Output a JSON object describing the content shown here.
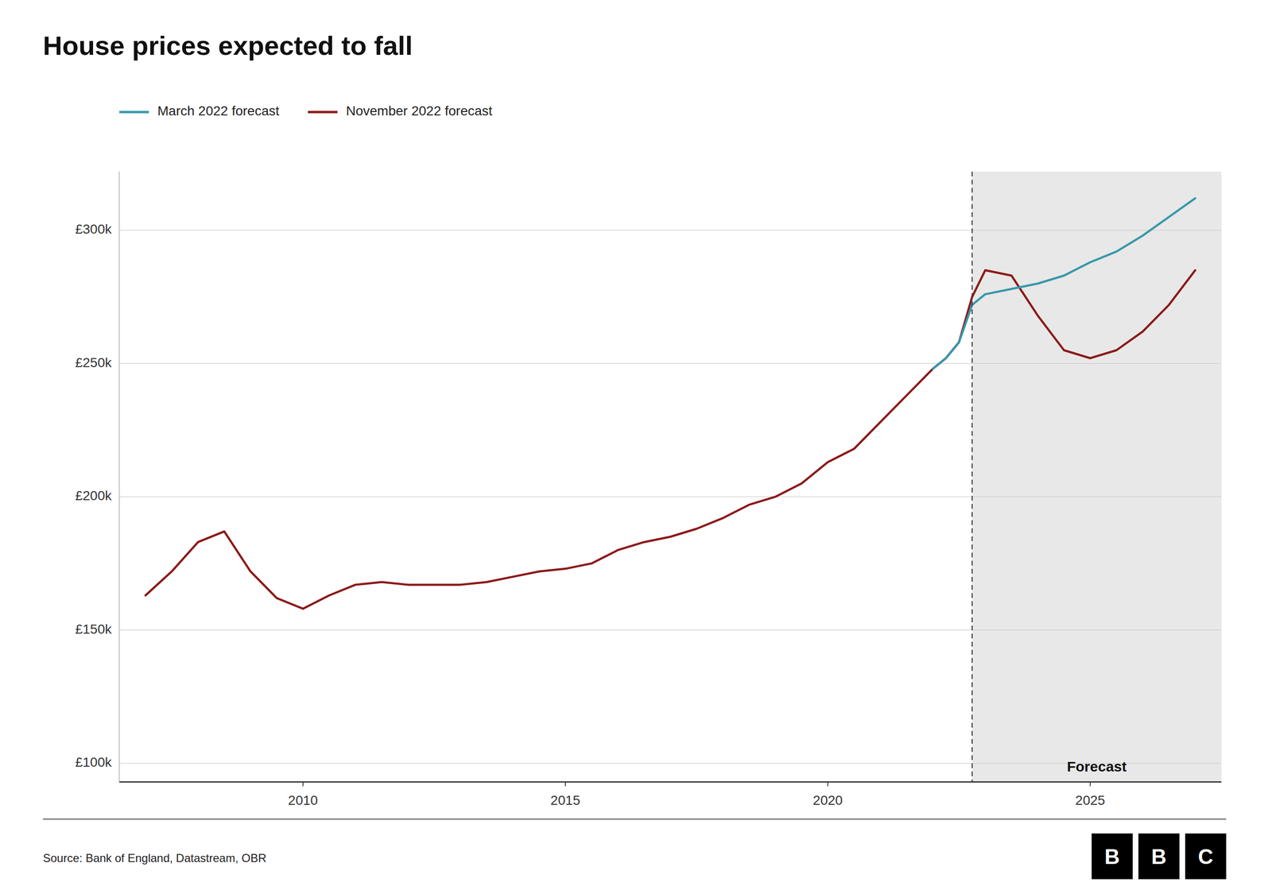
{
  "chart_data": {
    "type": "line",
    "title": "House prices expected to fall",
    "source": "Source: Bank of England, Datastream, OBR",
    "logo": "BBC",
    "annotations": [
      {
        "text": "Forecast"
      }
    ],
    "forecast_start": 2022.75,
    "x": [
      2007.0,
      2007.5,
      2008.0,
      2008.5,
      2009.0,
      2009.5,
      2010.0,
      2010.5,
      2011.0,
      2011.5,
      2012.0,
      2012.5,
      2013.0,
      2013.5,
      2014.0,
      2014.5,
      2015.0,
      2015.5,
      2016.0,
      2016.5,
      2017.0,
      2017.5,
      2018.0,
      2018.5,
      2019.0,
      2019.5,
      2020.0,
      2020.5,
      2021.0,
      2021.5,
      2022.0,
      2022.25,
      2022.5,
      2022.75,
      2023.0,
      2023.5,
      2024.0,
      2024.5,
      2025.0,
      2025.5,
      2026.0,
      2026.5,
      2027.0
    ],
    "series": [
      {
        "name": "March 2022 forecast",
        "color": "#3898aa",
        "values": [
          null,
          null,
          null,
          null,
          null,
          null,
          null,
          null,
          null,
          null,
          null,
          null,
          null,
          null,
          null,
          null,
          null,
          null,
          null,
          null,
          null,
          null,
          null,
          null,
          null,
          null,
          null,
          null,
          null,
          null,
          248000,
          252000,
          258000,
          272000,
          276000,
          278000,
          280000,
          283000,
          288000,
          292000,
          298000,
          305000,
          312000
        ]
      },
      {
        "name": "November 2022 forecast",
        "color": "#8b1a1a",
        "values": [
          163000,
          172000,
          183000,
          187000,
          172000,
          162000,
          158000,
          163000,
          167000,
          168000,
          167000,
          167000,
          167000,
          168000,
          170000,
          172000,
          173000,
          175000,
          180000,
          183000,
          185000,
          188000,
          192000,
          197000,
          200000,
          205000,
          213000,
          218000,
          228000,
          238000,
          248000,
          252000,
          258000,
          275000,
          285000,
          283000,
          268000,
          255000,
          252000,
          255000,
          262000,
          272000,
          285000
        ]
      }
    ],
    "xlim": [
      2006.5,
      2027.5
    ],
    "ylim": [
      93000,
      322000
    ],
    "xticks": [
      2010,
      2015,
      2020,
      2025
    ],
    "yticks": [
      {
        "value": 100000,
        "label": "£100k"
      },
      {
        "value": 150000,
        "label": "£150k"
      },
      {
        "value": 200000,
        "label": "£200k"
      },
      {
        "value": 250000,
        "label": "£250k"
      },
      {
        "value": 300000,
        "label": "£300k"
      }
    ],
    "grid": true,
    "legend": "top-left"
  }
}
